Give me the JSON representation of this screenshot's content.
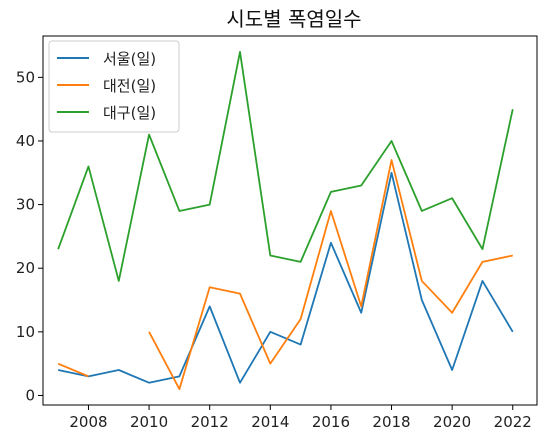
{
  "chart_data": {
    "type": "line",
    "title": "시도별 폭염일수",
    "xlabel": "",
    "ylabel": "",
    "x": [
      2007,
      2008,
      2009,
      2010,
      2011,
      2012,
      2013,
      2014,
      2015,
      2016,
      2017,
      2018,
      2019,
      2020,
      2021,
      2022
    ],
    "xlim": [
      2006.5,
      2022.8
    ],
    "ylim": [
      -1.5,
      56.5
    ],
    "x_ticks": [
      2008,
      2010,
      2012,
      2014,
      2016,
      2018,
      2020,
      2022
    ],
    "y_ticks": [
      0,
      10,
      20,
      30,
      40,
      50
    ],
    "grid": false,
    "legend_position": "top-left",
    "series": [
      {
        "name": "서울(일)",
        "color": "#1f77b4",
        "values": [
          4,
          3,
          4,
          2,
          3,
          14,
          2,
          10,
          8,
          24,
          13,
          35,
          15,
          4,
          18,
          10
        ]
      },
      {
        "name": "대전(일)",
        "color": "#ff7f0e",
        "values": [
          5,
          3,
          null,
          10,
          1,
          17,
          16,
          5,
          12,
          29,
          14,
          37,
          18,
          13,
          21,
          22
        ]
      },
      {
        "name": "대구(일)",
        "color": "#2ca02c",
        "values": [
          23,
          36,
          18,
          41,
          29,
          30,
          54,
          22,
          21,
          32,
          33,
          40,
          29,
          31,
          23,
          45
        ]
      }
    ]
  }
}
